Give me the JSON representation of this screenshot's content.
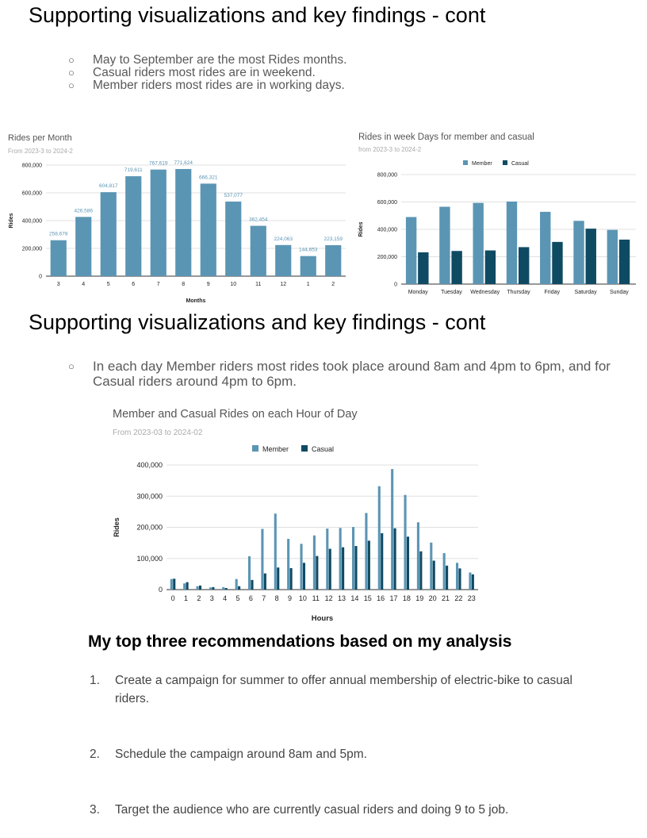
{
  "section1": {
    "heading": "Supporting visualizations and key findings - cont",
    "bullets": [
      "May to September are the most Rides months.",
      "Casual riders most rides are in weekend.",
      "Member riders most rides are in working days."
    ]
  },
  "section2": {
    "heading": "Supporting visualizations and key findings - cont",
    "bullets": [
      "In each day Member riders most rides took place around 8am and 4pm to 6pm, and for Casual riders around 4pm to 6pm."
    ]
  },
  "recommendations": {
    "heading": "My top three recommendations based on my analysis",
    "items": [
      {
        "num": "1.",
        "text": "Create a campaign for summer to offer annual membership of electric-bike to casual riders."
      },
      {
        "num": "2.",
        "text": "Schedule the campaign around 8am and 5pm."
      },
      {
        "num": "3.",
        "text": "Target the audience who are currently casual riders and doing 9 to 5 job."
      }
    ]
  },
  "colors": {
    "member": "#5b95b4",
    "casual": "#0f4a63",
    "bar": "#5b95b4",
    "grid": "#e0e0e0",
    "title": "#555555",
    "subtitle": "#aaaaaa",
    "label": "#5b95b4"
  },
  "chart_data": [
    {
      "type": "bar",
      "title": "Rides per Month",
      "subtitle": "From 2023-3 to 2024-2",
      "xlabel": "Months",
      "ylabel": "Rides",
      "categories": [
        "3",
        "4",
        "5",
        "6",
        "7",
        "8",
        "9",
        "10",
        "11",
        "12",
        "1",
        "2"
      ],
      "values": [
        258678,
        426586,
        604817,
        719611,
        767619,
        771624,
        666321,
        537077,
        362454,
        224063,
        144653,
        223159
      ],
      "data_labels": [
        "258,678",
        "426,586",
        "604,817",
        "719,611",
        "767,619",
        "771,624",
        "666,321",
        "537,077",
        "362,454",
        "224,063",
        "144,653",
        "223,159"
      ],
      "ylim": [
        0,
        800000
      ],
      "yticks": [
        "0",
        "200,000",
        "400,000",
        "600,000",
        "800,000"
      ],
      "grid": true,
      "legend": "none"
    },
    {
      "type": "bar",
      "title": "Rides in week Days for member and casual",
      "subtitle": "from 2023-3 to 2024-2",
      "xlabel": "",
      "ylabel": "Rides",
      "categories": [
        "Monday",
        "Tuesday",
        "Wednesday",
        "Thursday",
        "Friday",
        "Saturday",
        "Sunday"
      ],
      "series": [
        {
          "name": "Member",
          "values": [
            490000,
            565000,
            593000,
            603000,
            528000,
            462000,
            396000
          ]
        },
        {
          "name": "Casual",
          "values": [
            232000,
            242000,
            246000,
            270000,
            308000,
            405000,
            325000
          ]
        }
      ],
      "ylim": [
        0,
        800000
      ],
      "yticks": [
        "0",
        "200,000",
        "400,000",
        "600,000",
        "800,000"
      ],
      "grid": true,
      "legend": "top"
    },
    {
      "type": "bar",
      "title": "Member and Casual Rides on each Hour of Day",
      "subtitle": "From 2023-03 to 2024-02",
      "xlabel": "Hours",
      "ylabel": "Rides",
      "categories": [
        "0",
        "1",
        "2",
        "3",
        "4",
        "5",
        "6",
        "7",
        "8",
        "9",
        "10",
        "11",
        "12",
        "13",
        "14",
        "15",
        "16",
        "17",
        "18",
        "19",
        "20",
        "21",
        "22",
        "23"
      ],
      "series": [
        {
          "name": "Member",
          "values": [
            34000,
            20000,
            11000,
            7000,
            8000,
            34000,
            107000,
            195000,
            244000,
            163000,
            147000,
            174000,
            196000,
            198000,
            201000,
            246000,
            332000,
            387000,
            304000,
            216000,
            151000,
            117000,
            86000,
            55000
          ]
        },
        {
          "name": "Casual",
          "values": [
            35000,
            24000,
            13000,
            8000,
            5000,
            11000,
            31000,
            52000,
            71000,
            69000,
            86000,
            108000,
            131000,
            136000,
            140000,
            157000,
            181000,
            197000,
            170000,
            123000,
            93000,
            77000,
            68000,
            49000
          ]
        }
      ],
      "ylim": [
        0,
        400000
      ],
      "yticks": [
        "0",
        "100,000",
        "200,000",
        "300,000",
        "400,000"
      ],
      "grid": true,
      "legend": "top"
    }
  ]
}
